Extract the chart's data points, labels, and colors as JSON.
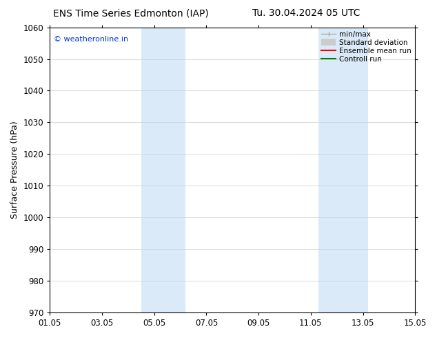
{
  "title_left": "ENS Time Series Edmonton (IAP)",
  "title_right": "Tu. 30.04.2024 05 UTC",
  "ylabel": "Surface Pressure (hPa)",
  "ylim": [
    970,
    1060
  ],
  "yticks": [
    970,
    980,
    990,
    1000,
    1010,
    1020,
    1030,
    1040,
    1050,
    1060
  ],
  "xlim": [
    0,
    14
  ],
  "xtick_labels": [
    "01.05",
    "03.05",
    "05.05",
    "07.05",
    "09.05",
    "11.05",
    "13.05",
    "15.05"
  ],
  "xtick_positions": [
    0,
    2,
    4,
    6,
    8,
    10,
    12,
    14
  ],
  "shaded_bands": [
    {
      "x_start": 3.5,
      "x_end": 5.2,
      "color": "#daeaf8"
    },
    {
      "x_start": 10.3,
      "x_end": 12.2,
      "color": "#daeaf8"
    }
  ],
  "watermark_text": "© weatheronline.in",
  "watermark_color": "#0033cc",
  "watermark_fontsize": 8,
  "legend_entries": [
    {
      "label": "min/max",
      "color": "#aaaaaa",
      "type": "errorbar"
    },
    {
      "label": "Standard deviation",
      "color": "#cccccc",
      "type": "thick",
      "lw": 7
    },
    {
      "label": "Ensemble mean run",
      "color": "#ff0000",
      "type": "line",
      "lw": 1.5
    },
    {
      "label": "Controll run",
      "color": "#008000",
      "type": "line",
      "lw": 1.5
    }
  ],
  "bg_color": "#ffffff",
  "title_fontsize": 10,
  "axis_label_fontsize": 9,
  "tick_fontsize": 8.5
}
